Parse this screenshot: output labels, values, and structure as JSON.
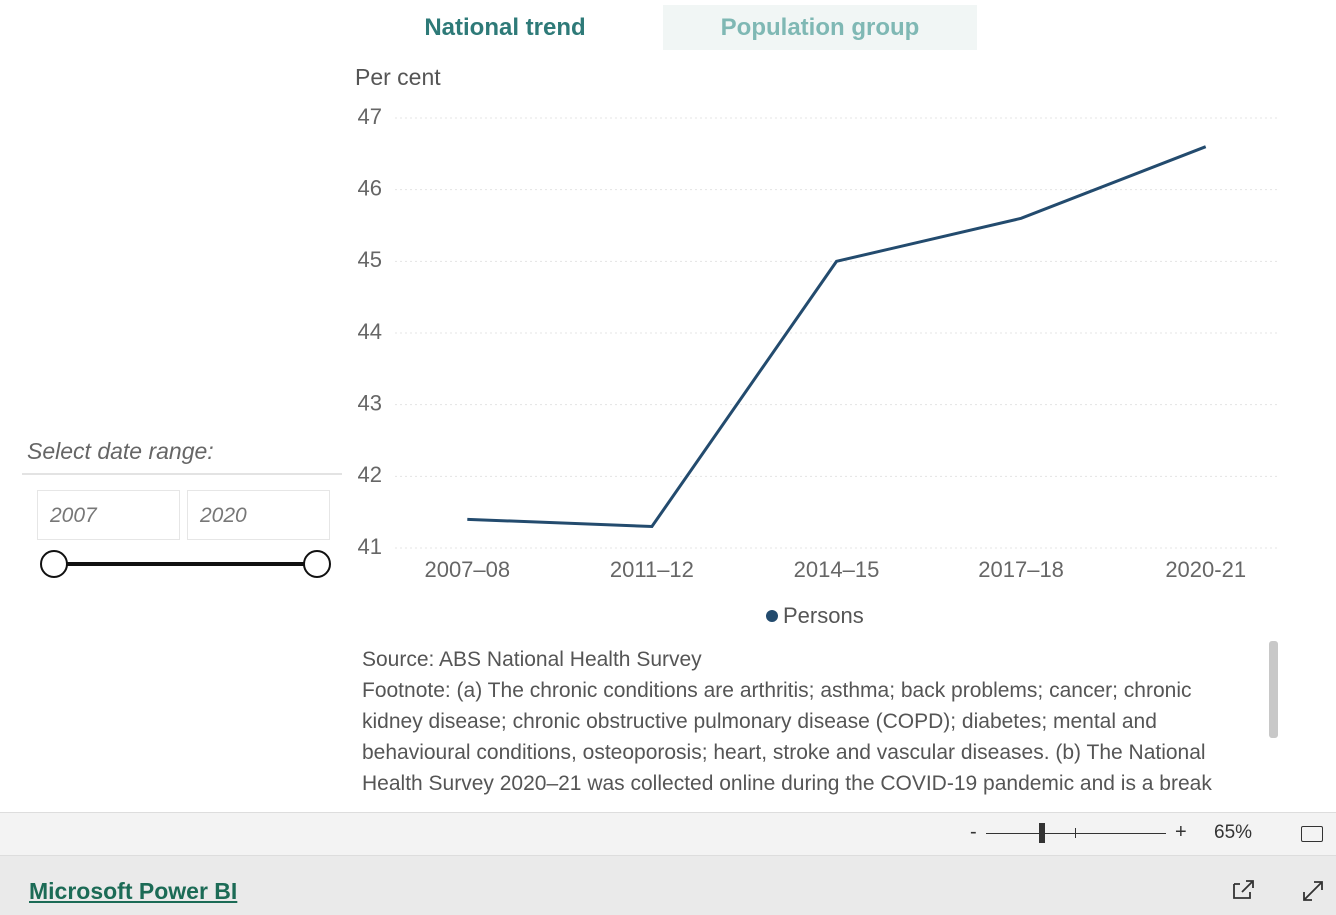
{
  "tabs": [
    "National trend",
    "Population group"
  ],
  "slicer": {
    "label": "Select date range:",
    "start": "2007",
    "end": "2020"
  },
  "chart_data": {
    "type": "line",
    "y_label": "Per cent",
    "categories": [
      "2007–08",
      "2011–12",
      "2014–15",
      "2017–18",
      "2020-21"
    ],
    "series": [
      {
        "name": "Persons",
        "color": "#234b6e",
        "values": [
          41.4,
          41.3,
          45.0,
          45.6,
          46.6
        ]
      }
    ],
    "ylim": [
      41,
      47
    ],
    "yticks": [
      41,
      42,
      43,
      44,
      45,
      46,
      47
    ],
    "grid": true,
    "legend": "bottom"
  },
  "notes": {
    "source": "Source: ABS National Health Survey",
    "footnote": "Footnote: (a) The chronic conditions are arthritis; asthma; back problems; cancer; chronic kidney disease; chronic obstructive pulmonary disease (COPD); diabetes; mental and behavioural conditions, osteoporosis; heart, stroke and vascular diseases. (b) The National Health Survey 2020–21 was collected online during the COVID-19 pandemic and is a break"
  },
  "zoom": {
    "minus": "-",
    "plus": "+",
    "level": "65%"
  },
  "footer": {
    "brand": "Microsoft Power BI"
  }
}
